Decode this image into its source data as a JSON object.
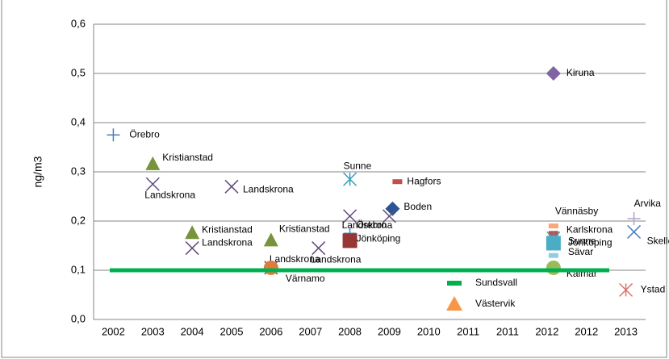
{
  "chart_data": {
    "type": "scatter",
    "ylabel": "ng/m3",
    "categories": [
      "2002",
      "2003",
      "2004",
      "2005",
      "2006",
      "2007",
      "2008",
      "2009",
      "2010",
      "2011",
      "2011",
      "2012",
      "2012",
      "2013"
    ],
    "ylim": [
      0,
      0.6
    ],
    "yticks": [
      {
        "value": 0,
        "label": "0,0"
      },
      {
        "value": 0.1,
        "label": "0,1"
      },
      {
        "value": 0.2,
        "label": "0,2"
      },
      {
        "value": 0.3,
        "label": "0,3"
      },
      {
        "value": 0.4,
        "label": "0,4"
      },
      {
        "value": 0.5,
        "label": "0,5"
      },
      {
        "value": 0.6,
        "label": "0,6"
      }
    ],
    "grid": true,
    "series": [
      {
        "name": "Örebro",
        "color": "#4a7ebb",
        "marker": "plus",
        "values": [
          0.375,
          null,
          null,
          null,
          null,
          null,
          null,
          null,
          null,
          null,
          null,
          null,
          null,
          null
        ]
      },
      {
        "name": "Kristianstad",
        "color": "#77933c",
        "marker": "triangle",
        "values": [
          null,
          0.315,
          null,
          null,
          null,
          null,
          null,
          null,
          null,
          null,
          null,
          null,
          null,
          null
        ]
      },
      {
        "name": "Landskrona",
        "color": "#604a7b",
        "marker": "x",
        "values": [
          null,
          0.275,
          null,
          null,
          null,
          null,
          null,
          null,
          null,
          null,
          null,
          null,
          null,
          null
        ]
      },
      {
        "name": "Landskrona",
        "color": "#604a7b",
        "marker": "x",
        "values": [
          null,
          null,
          null,
          0.27,
          null,
          null,
          null,
          null,
          null,
          null,
          null,
          null,
          null,
          null
        ]
      },
      {
        "name": "Kristianstad",
        "color": "#77933c",
        "marker": "triangle",
        "values": [
          null,
          null,
          0.175,
          null,
          null,
          null,
          null,
          null,
          null,
          null,
          null,
          null,
          null,
          null
        ]
      },
      {
        "name": "Landskrona",
        "color": "#604a7b",
        "marker": "x",
        "values": [
          null,
          null,
          0.145,
          null,
          null,
          null,
          null,
          null,
          null,
          null,
          null,
          null,
          null,
          null
        ]
      },
      {
        "name": "Kristianstad",
        "color": "#77933c",
        "marker": "triangle",
        "values": [
          null,
          null,
          null,
          null,
          0.16,
          null,
          null,
          null,
          null,
          null,
          null,
          null,
          null,
          null
        ]
      },
      {
        "name": "Landskrona",
        "color": "#604a7b",
        "marker": "x",
        "values": [
          null,
          null,
          null,
          null,
          null,
          0.145,
          null,
          null,
          null,
          null,
          null,
          null,
          null,
          null
        ]
      },
      {
        "name": "Landskrona",
        "color": "#604a7b",
        "marker": "x",
        "values": [
          null,
          null,
          null,
          null,
          0.105,
          null,
          null,
          null,
          null,
          null,
          null,
          null,
          null,
          null
        ]
      },
      {
        "name": "Värnamo",
        "color": "#e07b39",
        "marker": "circle",
        "values": [
          null,
          null,
          null,
          null,
          0.105,
          null,
          null,
          null,
          null,
          null,
          null,
          null,
          null,
          null
        ]
      },
      {
        "name": "Sunne",
        "color": "#31a0b5",
        "marker": "asterisk",
        "values": [
          null,
          null,
          null,
          null,
          null,
          null,
          0.285,
          null,
          null,
          null,
          null,
          null,
          null,
          null
        ]
      },
      {
        "name": "Hagfors",
        "color": "#c0504d",
        "marker": "dash",
        "values": [
          null,
          null,
          null,
          null,
          null,
          null,
          null,
          0.28,
          null,
          null,
          null,
          null,
          null,
          null
        ]
      },
      {
        "name": "Boden",
        "color": "#2c5593",
        "marker": "diamond",
        "values": [
          null,
          null,
          null,
          null,
          null,
          null,
          null,
          0.225,
          null,
          null,
          null,
          null,
          null,
          null
        ]
      },
      {
        "name": "Landskrona",
        "color": "#604a7b",
        "marker": "x",
        "values": [
          null,
          null,
          null,
          null,
          null,
          null,
          0.21,
          0.21,
          null,
          null,
          null,
          null,
          null,
          null
        ]
      },
      {
        "name": "Örebro",
        "color": "#4a7ebb",
        "marker": "plus",
        "values": [
          null,
          null,
          null,
          null,
          null,
          null,
          0.175,
          null,
          null,
          null,
          null,
          null,
          null,
          null
        ]
      },
      {
        "name": "Jönköping",
        "color": "#953735",
        "marker": "square",
        "values": [
          null,
          null,
          null,
          null,
          null,
          null,
          0.16,
          null,
          null,
          null,
          null,
          null,
          null,
          null
        ]
      },
      {
        "name": "Kiruna",
        "color": "#8064a2",
        "marker": "diamond",
        "values": [
          null,
          null,
          null,
          null,
          null,
          null,
          null,
          null,
          null,
          null,
          null,
          0.5,
          null,
          null
        ]
      },
      {
        "name": "Vännäsby",
        "color": "#f9a77a",
        "marker": "dash",
        "values": [
          null,
          null,
          null,
          null,
          null,
          null,
          null,
          null,
          null,
          null,
          null,
          0.19,
          null,
          null
        ]
      },
      {
        "name": "Karlskrona",
        "color": "#c0504d",
        "marker": "dash",
        "values": [
          null,
          null,
          null,
          null,
          null,
          null,
          null,
          null,
          null,
          null,
          null,
          0.175,
          null,
          null
        ]
      },
      {
        "name": "Sunne",
        "color": "#31a0b5",
        "marker": "asterisk",
        "values": [
          null,
          null,
          null,
          null,
          null,
          null,
          null,
          null,
          null,
          null,
          null,
          0.165,
          null,
          null
        ]
      },
      {
        "name": "Jönköping",
        "color": "#4bacc6",
        "marker": "square",
        "values": [
          null,
          null,
          null,
          null,
          null,
          null,
          null,
          null,
          null,
          null,
          null,
          0.155,
          null,
          null
        ]
      },
      {
        "name": "Sävar",
        "color": "#93cddd",
        "marker": "dash",
        "values": [
          null,
          null,
          null,
          null,
          null,
          null,
          null,
          null,
          null,
          null,
          null,
          0.13,
          null,
          null
        ]
      },
      {
        "name": "Kalmar",
        "color": "#9bbb59",
        "marker": "circle",
        "values": [
          null,
          null,
          null,
          null,
          null,
          null,
          null,
          null,
          null,
          null,
          null,
          0.105,
          null,
          null
        ]
      },
      {
        "name": "Arvika",
        "color": "#b3a2c7",
        "marker": "plus",
        "values": [
          null,
          null,
          null,
          null,
          null,
          null,
          null,
          null,
          null,
          null,
          null,
          null,
          null,
          0.205
        ]
      },
      {
        "name": "Skellefteå",
        "color": "#4a7ebb",
        "marker": "x",
        "values": [
          null,
          null,
          null,
          null,
          null,
          null,
          null,
          null,
          null,
          null,
          null,
          null,
          null,
          0.178
        ]
      },
      {
        "name": "Ystad",
        "color": "#d9726e",
        "marker": "asterisk",
        "values": [
          null,
          null,
          null,
          null,
          null,
          null,
          null,
          null,
          null,
          null,
          null,
          null,
          null,
          0.06
        ]
      },
      {
        "name": "Sundsvall",
        "color": "#00b050",
        "marker": "line",
        "values": [
          0.1,
          0.1,
          0.1,
          0.1,
          0.1,
          0.1,
          0.1,
          0.1,
          0.1,
          0.1,
          0.1,
          0.1,
          0.1,
          0.1
        ]
      },
      {
        "name": "Västervik",
        "color": "#f79646",
        "marker": "triangle",
        "values": [
          null,
          null,
          null,
          null,
          null,
          null,
          null,
          null,
          null,
          null,
          null,
          null,
          null,
          null
        ]
      }
    ]
  }
}
